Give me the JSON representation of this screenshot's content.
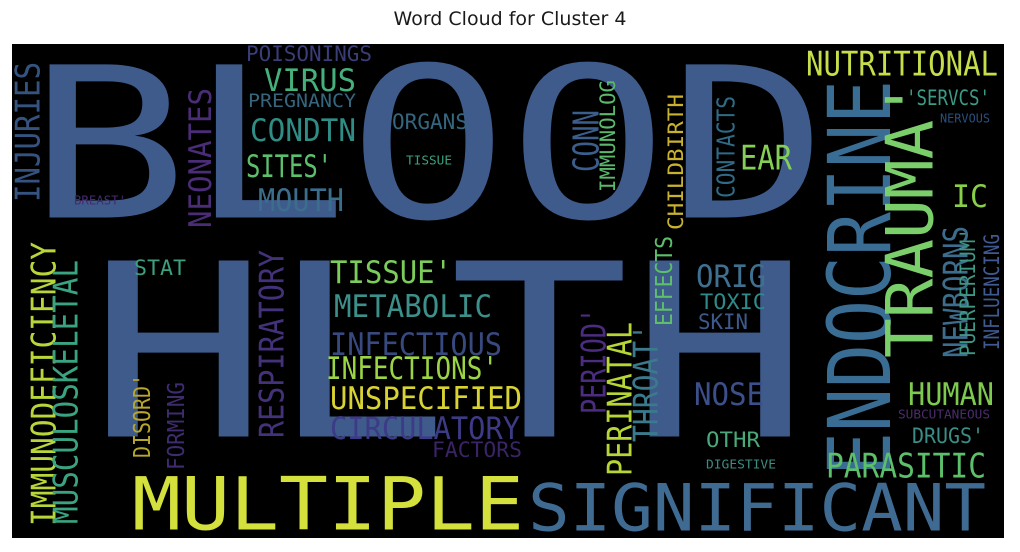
{
  "chart_data": {
    "type": "wordcloud",
    "title": "Word Cloud for Cluster 4",
    "background": "#000000",
    "words": [
      {
        "text": "BLOOD",
        "color": "#3e5b8c"
      },
      {
        "text": "HLTH",
        "color": "#3e5b8c"
      },
      {
        "text": "ENDOCRINE",
        "color": "#3a6d94"
      },
      {
        "text": "MULTIPLE",
        "color": "#d4e03c"
      },
      {
        "text": "SIGNIFICANT",
        "color": "#3f6b93"
      },
      {
        "text": "TRAUMA'",
        "color": "#7bcf6b"
      },
      {
        "text": "NUTRITIONAL",
        "color": "#c7de4a"
      },
      {
        "text": "INJURIES",
        "color": "#35537f"
      },
      {
        "text": "POISONINGS",
        "color": "#3a3d76"
      },
      {
        "text": "VIRUS",
        "color": "#46b07c"
      },
      {
        "text": "PREGNANCY",
        "color": "#35667d"
      },
      {
        "text": "CONDTN",
        "color": "#2f8d86"
      },
      {
        "text": "SITES'",
        "color": "#5cbf6c"
      },
      {
        "text": "MOUTH",
        "color": "#3b6e8d"
      },
      {
        "text": "NEONATES",
        "color": "#4a2c77"
      },
      {
        "text": "ORGANS",
        "color": "#35667d"
      },
      {
        "text": "TISSUE",
        "color": "#3aa07f"
      },
      {
        "text": "CONN",
        "color": "#3a5f8d"
      },
      {
        "text": "IMMUNOLOG",
        "color": "#5ab96d"
      },
      {
        "text": "CHILDBIRTH",
        "color": "#c8b22f"
      },
      {
        "text": "CONTACTS",
        "color": "#2f6a86"
      },
      {
        "text": "EAR",
        "color": "#84cf55"
      },
      {
        "text": "'SERVCS'",
        "color": "#3d9a84"
      },
      {
        "text": "NERVOUS",
        "color": "#2b4f7d"
      },
      {
        "text": "IC",
        "color": "#89d048"
      },
      {
        "text": "BREAST'",
        "color": "#452b6e"
      },
      {
        "text": "IMMUNODEFICIENCY",
        "color": "#b8d63a"
      },
      {
        "text": "MUSCULOSKELETAL",
        "color": "#3aa382"
      },
      {
        "text": "STAT",
        "color": "#3c9f7d"
      },
      {
        "text": "RESPIRATORY",
        "color": "#43317a"
      },
      {
        "text": "TISSUE'",
        "color": "#7ccc5c"
      },
      {
        "text": "METABOLIC",
        "color": "#3d8f8a"
      },
      {
        "text": "INFECTIOUS",
        "color": "#37497f"
      },
      {
        "text": "INFECTIONS'",
        "color": "#9bd445"
      },
      {
        "text": "UNSPECIFIED",
        "color": "#d8d332"
      },
      {
        "text": "CIRCULATORY",
        "color": "#3d3b86"
      },
      {
        "text": "FACTORS",
        "color": "#3a2466"
      },
      {
        "text": "DISORD'",
        "color": "#b9a72c"
      },
      {
        "text": "FORMING",
        "color": "#3e2c6e"
      },
      {
        "text": "EFFECTS",
        "color": "#5dbf6a"
      },
      {
        "text": "PERIOD'",
        "color": "#4c2c80"
      },
      {
        "text": "PERINATAL",
        "color": "#b6d636"
      },
      {
        "text": "THROAT'",
        "color": "#3a7a8c"
      },
      {
        "text": "ORIG",
        "color": "#3f7090"
      },
      {
        "text": "TOXIC",
        "color": "#2f8a8a"
      },
      {
        "text": "SKIN",
        "color": "#3d5a8c"
      },
      {
        "text": "NOSE",
        "color": "#3b4f8a"
      },
      {
        "text": "OTHR",
        "color": "#4aa87a"
      },
      {
        "text": "DIGESTIVE",
        "color": "#3b8e85"
      },
      {
        "text": "NEWBORNS",
        "color": "#3d6d8d"
      },
      {
        "text": "PUERPERIUM'",
        "color": "#3e9685"
      },
      {
        "text": "INFLUENCING",
        "color": "#3e5a90"
      },
      {
        "text": "HUMAN",
        "color": "#7ec950"
      },
      {
        "text": "SUBCUTANEOUS",
        "color": "#4a2d6e"
      },
      {
        "text": "DRUGS'",
        "color": "#3a8e85"
      },
      {
        "text": "PARASITIC",
        "color": "#5cbf6a"
      }
    ]
  }
}
